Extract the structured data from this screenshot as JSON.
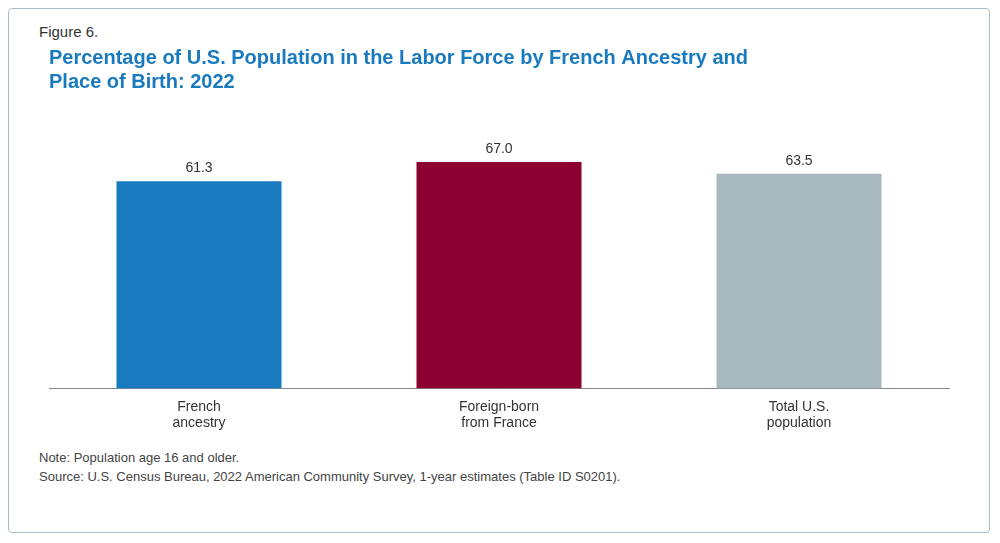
{
  "chart_data": {
    "type": "bar",
    "subtitle": "Figure 6.",
    "title": "Percentage of U.S. Population in the Labor Force by French Ancestry and\nPlace of Birth: 2022",
    "categories": [
      "French\nancestry",
      "Foreign-born\nfrom France",
      "Total U.S.\npopulation"
    ],
    "values": [
      61.3,
      67.0,
      63.5
    ],
    "value_labels": [
      "61.3",
      "67.0",
      "63.5"
    ],
    "colors": [
      "#1a7abf",
      "#8b0030",
      "#a8b8bf"
    ],
    "ylim": [
      0,
      80
    ],
    "grid": false,
    "data_labels": true,
    "tick_labels": "x",
    "annotations": [
      "Note: Population age 16 and older.",
      "Source: U.S. Census Bureau, 2022 American Community Survey, 1-year estimates (Table ID S0201)."
    ]
  }
}
